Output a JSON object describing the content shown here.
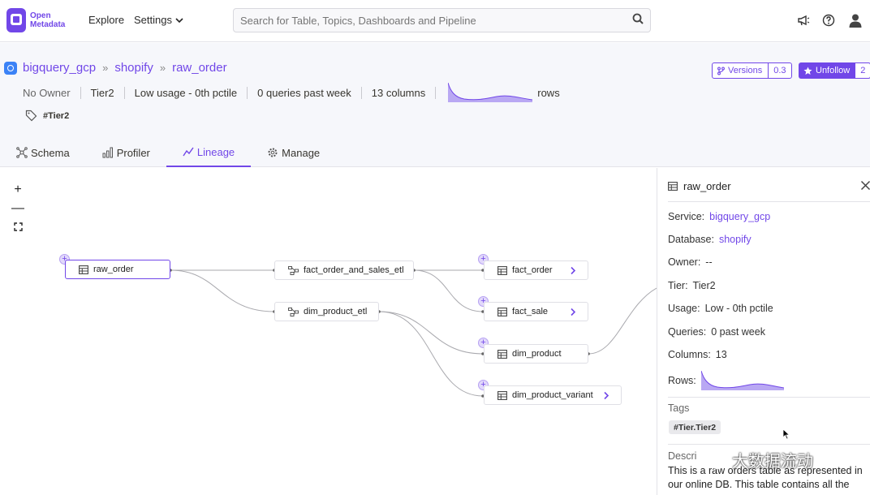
{
  "app": {
    "logo_line1": "Open",
    "logo_line2": "Metadata"
  },
  "nav": {
    "explore": "Explore",
    "settings": "Settings",
    "search_placeholder": "Search for Table, Topics, Dashboards and Pipeline",
    "icons": [
      "announcement-icon",
      "help-icon",
      "user-icon"
    ]
  },
  "breadcrumb": {
    "service": "bigquery_gcp",
    "database": "shopify",
    "table": "raw_order",
    "separator": "»"
  },
  "meta": {
    "owner": "No Owner",
    "tier": "Tier2",
    "usage": "Low usage - 0th pctile",
    "queries": "0 queries past week",
    "columns": "13 columns",
    "rows_label": "rows"
  },
  "tags": {
    "primary": "#Tier2"
  },
  "actions": {
    "versions_label": "Versions",
    "versions_count": "0.3",
    "follow_label": "Unfollow",
    "follow_count": "2"
  },
  "tabs": [
    {
      "label": "Schema",
      "active": false
    },
    {
      "label": "Profiler",
      "active": false
    },
    {
      "label": "Lineage",
      "active": true
    },
    {
      "label": "Manage",
      "active": false
    }
  ],
  "zoom": {
    "zoom_in": "+",
    "zoom_out": "—"
  },
  "lineage": {
    "nodes": [
      {
        "label": "raw_order",
        "kind": "table"
      },
      {
        "label": "fact_order_and_sales_etl",
        "kind": "pipeline"
      },
      {
        "label": "dim_product_etl",
        "kind": "pipeline"
      },
      {
        "label": "fact_order",
        "kind": "table"
      },
      {
        "label": "fact_sale",
        "kind": "table"
      },
      {
        "label": "dim_product",
        "kind": "table"
      },
      {
        "label": "dim_product_variant",
        "kind": "table"
      }
    ]
  },
  "panel": {
    "title": "raw_order",
    "service_label": "Service:",
    "service_value": "bigquery_gcp",
    "database_label": "Database:",
    "database_value": "shopify",
    "owner_label": "Owner:",
    "owner_value": "--",
    "tier_label": "Tier:",
    "tier_value": "Tier2",
    "usage_label": "Usage:",
    "usage_value": "Low - 0th pctile",
    "queries_label": "Queries:",
    "queries_value": "0 past week",
    "columns_label": "Columns:",
    "columns_value": "13",
    "rows_label": "Rows:",
    "tags_heading": "Tags",
    "tag": "#Tier.Tier2",
    "description_heading": "Descri",
    "description": "This is a raw orders table as represented in our online DB. This table contains all the"
  },
  "watermark": "大数据流动",
  "colors": {
    "accent": "#7147e8",
    "accent_light": "#e2d9fb",
    "header_bg": "#f6f7fb"
  }
}
